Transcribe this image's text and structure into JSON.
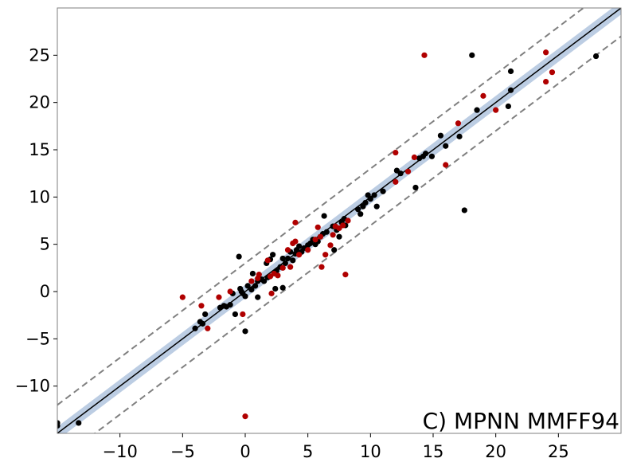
{
  "chart_data": {
    "type": "scatter",
    "title": "",
    "xlabel": "",
    "ylabel": "",
    "xlim": [
      -15.0,
      30.0
    ],
    "ylim": [
      -15.0,
      30.0
    ],
    "xticks": [
      -10,
      -5,
      0,
      5,
      10,
      15,
      20,
      25
    ],
    "yticks": [
      -10,
      -5,
      0,
      5,
      10,
      15,
      20,
      25
    ],
    "xtick_labels": [
      "−10",
      "−5",
      "0",
      "5",
      "10",
      "15",
      "20",
      "25"
    ],
    "ytick_labels": [
      "−10",
      "−5",
      "0",
      "5",
      "10",
      "15",
      "20",
      "25"
    ],
    "grid": false,
    "annotation": "C) MPNN MMFF94",
    "reference_lines": {
      "identity": {
        "slope": 1,
        "intercept": 0,
        "color": "#000000"
      },
      "upper_bound": {
        "slope": 1,
        "intercept": 3.0,
        "color": "#808080",
        "style": "dashed"
      },
      "lower_bound": {
        "slope": 1,
        "intercept": -3.0,
        "color": "#808080",
        "style": "dashed"
      },
      "confidence_band": {
        "slope": 1,
        "intercept": 0,
        "halfwidth": 0.7,
        "color": "#b0c4de"
      }
    },
    "series": [
      {
        "color": "#000000",
        "points": [
          [
            -15,
            -14.2
          ],
          [
            -15,
            -13.9
          ],
          [
            -13.3,
            -13.9
          ],
          [
            -4,
            -3.9
          ],
          [
            -3.4,
            -3.4
          ],
          [
            -3.2,
            -2.4
          ],
          [
            -3.6,
            -3.2
          ],
          [
            -2,
            -1.7
          ],
          [
            -1.7,
            -1.5
          ],
          [
            -1.5,
            -1.6
          ],
          [
            -1.2,
            -1.4
          ],
          [
            -1.0,
            -0.2
          ],
          [
            -0.8,
            -2.4
          ],
          [
            -0.5,
            3.7
          ],
          [
            -0.4,
            0.3
          ],
          [
            -0.3,
            0.0
          ],
          [
            -0.2,
            -0.2
          ],
          [
            0.0,
            -0.5
          ],
          [
            0.0,
            -4.2
          ],
          [
            0.2,
            0.6
          ],
          [
            0.5,
            0.2
          ],
          [
            0.6,
            1.9
          ],
          [
            0.8,
            0.6
          ],
          [
            1.0,
            1.1
          ],
          [
            1.0,
            -0.6
          ],
          [
            1.3,
            1.3
          ],
          [
            1.5,
            1.1
          ],
          [
            1.7,
            3.0
          ],
          [
            1.8,
            1.5
          ],
          [
            2.0,
            3.4
          ],
          [
            2.2,
            3.9
          ],
          [
            2.4,
            0.3
          ],
          [
            2.5,
            2.2
          ],
          [
            2.8,
            2.6
          ],
          [
            3.0,
            3.5
          ],
          [
            3.2,
            3.0
          ],
          [
            3.0,
            0.4
          ],
          [
            3.4,
            3.5
          ],
          [
            3.6,
            4.2
          ],
          [
            3.8,
            3.3
          ],
          [
            4.0,
            4.0
          ],
          [
            4.1,
            4.4
          ],
          [
            4.3,
            4.8
          ],
          [
            4.5,
            4.2
          ],
          [
            4.7,
            4.6
          ],
          [
            5.0,
            4.9
          ],
          [
            5.2,
            5.1
          ],
          [
            5.4,
            5.5
          ],
          [
            5.6,
            5.0
          ],
          [
            5.8,
            5.3
          ],
          [
            6.0,
            5.8
          ],
          [
            6.2,
            6.1
          ],
          [
            6.3,
            8.0
          ],
          [
            6.5,
            6.3
          ],
          [
            7.0,
            6.9
          ],
          [
            7.1,
            4.4
          ],
          [
            7.3,
            6.5
          ],
          [
            7.5,
            5.8
          ],
          [
            7.7,
            7.3
          ],
          [
            7.9,
            7.7
          ],
          [
            8.0,
            7.0
          ],
          [
            9.0,
            8.7
          ],
          [
            9.2,
            8.2
          ],
          [
            9.4,
            9.0
          ],
          [
            9.6,
            9.4
          ],
          [
            9.8,
            10.2
          ],
          [
            10.0,
            9.8
          ],
          [
            10.3,
            10.2
          ],
          [
            10.5,
            9.0
          ],
          [
            11.0,
            10.6
          ],
          [
            12.1,
            12.8
          ],
          [
            12.4,
            12.5
          ],
          [
            13.6,
            11.0
          ],
          [
            13.9,
            14.1
          ],
          [
            14.2,
            14.3
          ],
          [
            14.4,
            14.6
          ],
          [
            14.9,
            14.3
          ],
          [
            15.6,
            16.5
          ],
          [
            16.0,
            15.4
          ],
          [
            17.1,
            16.4
          ],
          [
            17.5,
            8.6
          ],
          [
            18.1,
            25.0
          ],
          [
            18.5,
            19.2
          ],
          [
            21.0,
            19.6
          ],
          [
            21.2,
            21.3
          ],
          [
            21.2,
            23.3
          ],
          [
            28.0,
            24.9
          ]
        ]
      },
      {
        "color": "#b00000",
        "points": [
          [
            -5.0,
            -0.6
          ],
          [
            -3.5,
            -1.5
          ],
          [
            -3.0,
            -3.9
          ],
          [
            -2.1,
            -0.6
          ],
          [
            -1.2,
            0.0
          ],
          [
            -0.2,
            -2.4
          ],
          [
            0.0,
            -13.2
          ],
          [
            0.5,
            1.1
          ],
          [
            1.0,
            1.4
          ],
          [
            1.1,
            1.8
          ],
          [
            1.8,
            3.3
          ],
          [
            2.0,
            1.6
          ],
          [
            2.1,
            -0.2
          ],
          [
            2.3,
            1.9
          ],
          [
            2.6,
            1.7
          ],
          [
            3.0,
            2.5
          ],
          [
            3.4,
            4.4
          ],
          [
            3.6,
            2.6
          ],
          [
            3.8,
            5.1
          ],
          [
            4.0,
            5.3
          ],
          [
            4.0,
            7.3
          ],
          [
            4.3,
            3.9
          ],
          [
            5.0,
            4.4
          ],
          [
            5.6,
            5.5
          ],
          [
            5.8,
            6.8
          ],
          [
            6.0,
            5.8
          ],
          [
            6.1,
            2.6
          ],
          [
            6.4,
            3.9
          ],
          [
            6.8,
            4.9
          ],
          [
            7.0,
            6.0
          ],
          [
            7.2,
            6.9
          ],
          [
            7.5,
            6.7
          ],
          [
            7.8,
            7.0
          ],
          [
            8.0,
            1.8
          ],
          [
            8.2,
            7.5
          ],
          [
            12.0,
            11.6
          ],
          [
            12.0,
            14.7
          ],
          [
            13.0,
            12.7
          ],
          [
            13.5,
            14.2
          ],
          [
            14.3,
            25.0
          ],
          [
            16.0,
            13.4
          ],
          [
            17.0,
            17.8
          ],
          [
            19.0,
            20.7
          ],
          [
            20.0,
            19.2
          ],
          [
            24.0,
            25.3
          ],
          [
            24.0,
            22.2
          ],
          [
            24.5,
            23.2
          ]
        ]
      }
    ]
  }
}
